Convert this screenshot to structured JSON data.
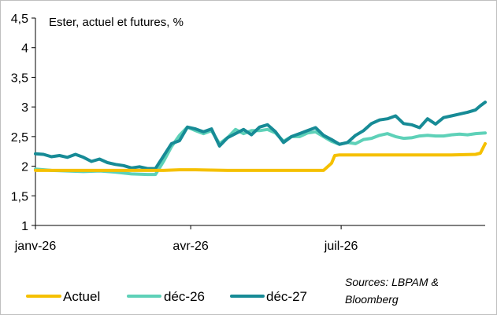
{
  "chart_data": {
    "type": "line",
    "title": "Ester, actuel et futures, %",
    "source_line1": "Sources: LBPAM &",
    "source_line2": "Bloomberg",
    "ylim": [
      1,
      4.5
    ],
    "yticks": [
      "1",
      "1,5",
      "2",
      "2,5",
      "3",
      "3,5",
      "4",
      "4,5"
    ],
    "ytick_values": [
      1,
      1.5,
      2,
      2.5,
      3,
      3.5,
      4,
      4.5
    ],
    "xlim": [
      0,
      281
    ],
    "xticks": [
      "janv-26",
      "avr-26",
      "juil-26"
    ],
    "xtick_values": [
      0,
      97,
      191
    ],
    "grid": false,
    "legend_position": "bottom",
    "series": [
      {
        "name": "Actuel",
        "color": "#f5c000",
        "x": [
          0,
          40,
          80,
          90,
          100,
          120,
          140,
          160,
          180,
          185,
          187,
          190,
          200,
          220,
          240,
          260,
          275,
          278,
          281
        ],
        "y": [
          1.93,
          1.93,
          1.93,
          1.94,
          1.94,
          1.93,
          1.93,
          1.93,
          1.93,
          2.05,
          2.18,
          2.19,
          2.19,
          2.19,
          2.19,
          2.19,
          2.2,
          2.22,
          2.38
        ]
      },
      {
        "name": "déc-26",
        "color": "#5ed1b8",
        "x": [
          0,
          10,
          20,
          30,
          40,
          50,
          60,
          70,
          75,
          80,
          85,
          90,
          95,
          100,
          105,
          110,
          115,
          120,
          125,
          130,
          135,
          140,
          145,
          150,
          155,
          160,
          165,
          170,
          175,
          180,
          185,
          190,
          195,
          200,
          205,
          210,
          215,
          220,
          225,
          230,
          235,
          240,
          245,
          250,
          255,
          260,
          265,
          270,
          275,
          281
        ],
        "y": [
          1.95,
          1.93,
          1.92,
          1.91,
          1.92,
          1.9,
          1.87,
          1.86,
          1.86,
          2.08,
          2.33,
          2.52,
          2.66,
          2.6,
          2.55,
          2.6,
          2.38,
          2.48,
          2.62,
          2.55,
          2.6,
          2.6,
          2.62,
          2.56,
          2.42,
          2.5,
          2.5,
          2.56,
          2.58,
          2.5,
          2.42,
          2.37,
          2.4,
          2.38,
          2.45,
          2.47,
          2.52,
          2.55,
          2.5,
          2.47,
          2.48,
          2.51,
          2.52,
          2.51,
          2.51,
          2.53,
          2.54,
          2.53,
          2.55,
          2.56
        ]
      },
      {
        "name": "déc-27",
        "color": "#178b96",
        "x": [
          0,
          5,
          10,
          15,
          20,
          25,
          30,
          35,
          40,
          45,
          50,
          55,
          60,
          65,
          70,
          75,
          80,
          85,
          90,
          95,
          100,
          105,
          110,
          115,
          120,
          125,
          130,
          135,
          140,
          145,
          150,
          155,
          160,
          165,
          170,
          175,
          180,
          185,
          190,
          195,
          200,
          205,
          210,
          215,
          220,
          225,
          230,
          235,
          240,
          245,
          250,
          255,
          260,
          265,
          270,
          275,
          278,
          281
        ],
        "y": [
          2.21,
          2.2,
          2.16,
          2.18,
          2.15,
          2.2,
          2.15,
          2.08,
          2.12,
          2.06,
          2.03,
          2.01,
          1.97,
          1.99,
          1.96,
          1.96,
          2.17,
          2.38,
          2.43,
          2.66,
          2.63,
          2.58,
          2.63,
          2.34,
          2.48,
          2.55,
          2.62,
          2.53,
          2.66,
          2.7,
          2.58,
          2.4,
          2.5,
          2.55,
          2.6,
          2.65,
          2.52,
          2.45,
          2.37,
          2.4,
          2.52,
          2.6,
          2.72,
          2.78,
          2.8,
          2.85,
          2.72,
          2.7,
          2.65,
          2.8,
          2.71,
          2.82,
          2.85,
          2.88,
          2.91,
          2.95,
          3.02,
          3.08
        ]
      }
    ]
  }
}
